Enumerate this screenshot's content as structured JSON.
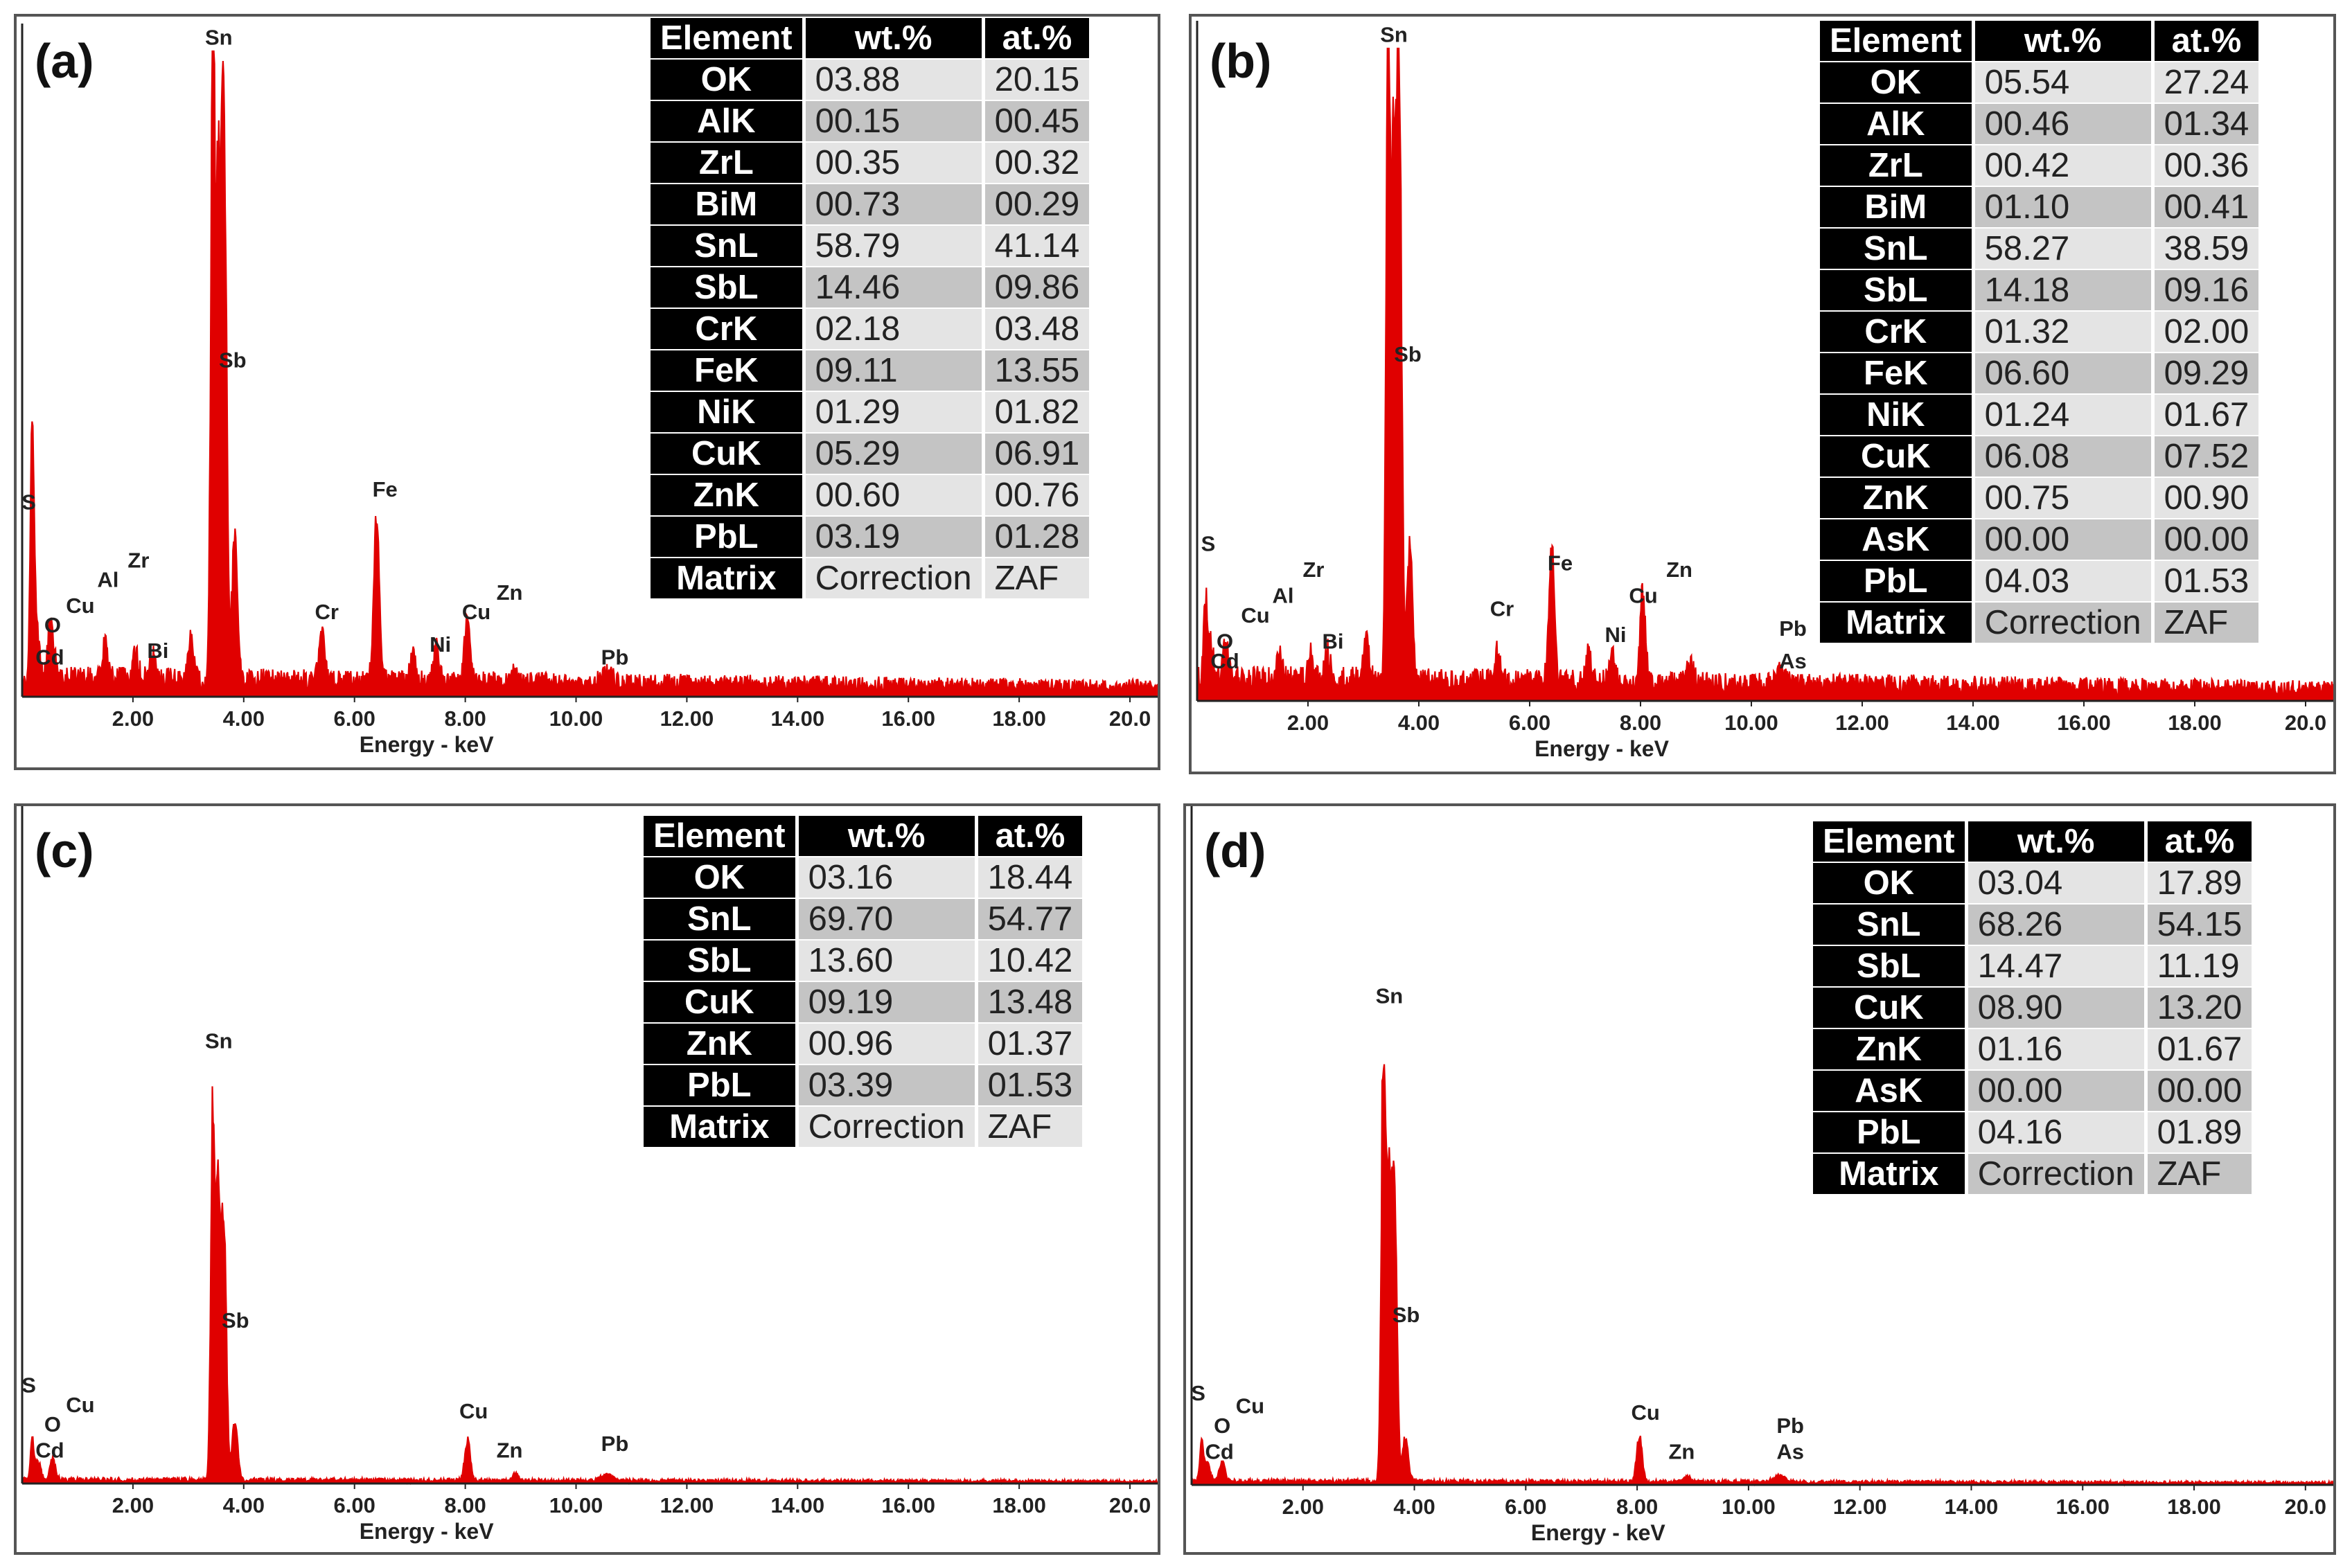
{
  "colors": {
    "spectrum": "#e00000",
    "axis": "#222222",
    "header_bg": "#000000"
  },
  "panels": [
    {
      "label": "(a)",
      "table": {
        "headers": [
          "Element",
          "wt.%",
          "at.%"
        ],
        "rows": [
          [
            "OK",
            "03.88",
            "20.15"
          ],
          [
            "AlK",
            "00.15",
            "00.45"
          ],
          [
            "ZrL",
            "00.35",
            "00.32"
          ],
          [
            "BiM",
            "00.73",
            "00.29"
          ],
          [
            "SnL",
            "58.79",
            "41.14"
          ],
          [
            "SbL",
            "14.46",
            "09.86"
          ],
          [
            "CrK",
            "02.18",
            "03.48"
          ],
          [
            "FeK",
            "09.11",
            "13.55"
          ],
          [
            "NiK",
            "01.29",
            "01.82"
          ],
          [
            "CuK",
            "05.29",
            "06.91"
          ],
          [
            "ZnK",
            "00.60",
            "00.76"
          ],
          [
            "PbL",
            "03.19",
            "01.28"
          ],
          [
            "Matrix",
            "Correction",
            "ZAF"
          ]
        ]
      }
    },
    {
      "label": "(b)",
      "table": {
        "headers": [
          "Element",
          "wt.%",
          "at.%"
        ],
        "rows": [
          [
            "OK",
            "05.54",
            "27.24"
          ],
          [
            "AlK",
            "00.46",
            "01.34"
          ],
          [
            "ZrL",
            "00.42",
            "00.36"
          ],
          [
            "BiM",
            "01.10",
            "00.41"
          ],
          [
            "SnL",
            "58.27",
            "38.59"
          ],
          [
            "SbL",
            "14.18",
            "09.16"
          ],
          [
            "CrK",
            "01.32",
            "02.00"
          ],
          [
            "FeK",
            "06.60",
            "09.29"
          ],
          [
            "NiK",
            "01.24",
            "01.67"
          ],
          [
            "CuK",
            "06.08",
            "07.52"
          ],
          [
            "ZnK",
            "00.75",
            "00.90"
          ],
          [
            "AsK",
            "00.00",
            "00.00"
          ],
          [
            "PbL",
            "04.03",
            "01.53"
          ],
          [
            "Matrix",
            "Correction",
            "ZAF"
          ]
        ]
      }
    },
    {
      "label": "(c)",
      "table": {
        "headers": [
          "Element",
          "wt.%",
          "at.%"
        ],
        "rows": [
          [
            "OK",
            "03.16",
            "18.44"
          ],
          [
            "SnL",
            "69.70",
            "54.77"
          ],
          [
            "SbL",
            "13.60",
            "10.42"
          ],
          [
            "CuK",
            "09.19",
            "13.48"
          ],
          [
            "ZnK",
            "00.96",
            "01.37"
          ],
          [
            "PbL",
            "03.39",
            "01.53"
          ],
          [
            "Matrix",
            "Correction",
            "ZAF"
          ]
        ]
      }
    },
    {
      "label": "(d)",
      "table": {
        "headers": [
          "Element",
          "wt.%",
          "at.%"
        ],
        "rows": [
          [
            "OK",
            "03.04",
            "17.89"
          ],
          [
            "SnL",
            "68.26",
            "54.15"
          ],
          [
            "SbL",
            "14.47",
            "11.19"
          ],
          [
            "CuK",
            "08.90",
            "13.20"
          ],
          [
            "ZnK",
            "01.16",
            "01.67"
          ],
          [
            "AsK",
            "00.00",
            "00.00"
          ],
          [
            "PbL",
            "04.16",
            "01.89"
          ],
          [
            "Matrix",
            "Correction",
            "ZAF"
          ]
        ]
      }
    }
  ],
  "chart_data": [
    {
      "type": "line",
      "title": "(a)",
      "xlabel": "Energy - keV",
      "ylabel": "",
      "xlim": [
        0,
        20.5
      ],
      "ylim": [
        0,
        1
      ],
      "xticks": [
        "2.00",
        "4.00",
        "6.00",
        "8.00",
        "10.00",
        "12.00",
        "14.00",
        "16.00",
        "18.00",
        "20.0"
      ],
      "baseline": 0.03,
      "peaks": [
        {
          "x": 0.18,
          "y": 0.39,
          "w": 0.03
        },
        {
          "x": 0.25,
          "y": 0.09,
          "w": 0.05
        },
        {
          "x": 0.52,
          "y": 0.1,
          "w": 0.05
        },
        {
          "x": 1.49,
          "y": 0.06,
          "w": 0.05
        },
        {
          "x": 2.05,
          "y": 0.04,
          "w": 0.05
        },
        {
          "x": 2.35,
          "y": 0.04,
          "w": 0.05
        },
        {
          "x": 3.05,
          "y": 0.06,
          "w": 0.05
        },
        {
          "x": 3.44,
          "y": 0.98,
          "w": 0.035
        },
        {
          "x": 3.53,
          "y": 0.72,
          "w": 0.04
        },
        {
          "x": 3.61,
          "y": 0.5,
          "w": 0.04
        },
        {
          "x": 3.66,
          "y": 0.58,
          "w": 0.04
        },
        {
          "x": 3.84,
          "y": 0.22,
          "w": 0.05
        },
        {
          "x": 5.41,
          "y": 0.08,
          "w": 0.05
        },
        {
          "x": 6.4,
          "y": 0.25,
          "w": 0.05
        },
        {
          "x": 7.06,
          "y": 0.04,
          "w": 0.05
        },
        {
          "x": 7.48,
          "y": 0.05,
          "w": 0.05
        },
        {
          "x": 8.04,
          "y": 0.1,
          "w": 0.05
        },
        {
          "x": 8.9,
          "y": 0.02,
          "w": 0.06
        },
        {
          "x": 10.55,
          "y": 0.015,
          "w": 0.1
        }
      ],
      "annotations": [
        {
          "text": "Sn",
          "x": 3.55,
          "y": 1.01
        },
        {
          "text": "Sb",
          "x": 3.8,
          "y": 0.51
        },
        {
          "text": "S",
          "x": 0.12,
          "y": 0.29
        },
        {
          "text": "Zr",
          "x": 2.1,
          "y": 0.2
        },
        {
          "text": "Al",
          "x": 1.55,
          "y": 0.17
        },
        {
          "text": "Cu",
          "x": 1.05,
          "y": 0.13
        },
        {
          "text": "O",
          "x": 0.55,
          "y": 0.1
        },
        {
          "text": "Cd",
          "x": 0.5,
          "y": 0.05
        },
        {
          "text": "Bi",
          "x": 2.45,
          "y": 0.06
        },
        {
          "text": "Fe",
          "x": 6.55,
          "y": 0.31
        },
        {
          "text": "Cr",
          "x": 5.5,
          "y": 0.12
        },
        {
          "text": "Zn",
          "x": 8.8,
          "y": 0.15
        },
        {
          "text": "Cu",
          "x": 8.2,
          "y": 0.12
        },
        {
          "text": "Ni",
          "x": 7.55,
          "y": 0.07
        },
        {
          "text": "Pb",
          "x": 10.7,
          "y": 0.05
        }
      ]
    },
    {
      "type": "line",
      "title": "(b)",
      "xlabel": "Energy - keV",
      "ylabel": "",
      "xlim": [
        0,
        20.5
      ],
      "ylim": [
        0,
        1
      ],
      "xticks": [
        "2.00",
        "4.00",
        "6.00",
        "8.00",
        "10.00",
        "12.00",
        "14.00",
        "16.00",
        "18.00",
        "20.0"
      ],
      "baseline": 0.035,
      "peaks": [
        {
          "x": 0.15,
          "y": 0.13,
          "w": 0.03
        },
        {
          "x": 0.25,
          "y": 0.05,
          "w": 0.05
        },
        {
          "x": 0.52,
          "y": 0.05,
          "w": 0.05
        },
        {
          "x": 1.49,
          "y": 0.05,
          "w": 0.05
        },
        {
          "x": 2.05,
          "y": 0.04,
          "w": 0.05
        },
        {
          "x": 2.35,
          "y": 0.04,
          "w": 0.05
        },
        {
          "x": 3.05,
          "y": 0.06,
          "w": 0.05
        },
        {
          "x": 3.44,
          "y": 0.98,
          "w": 0.035
        },
        {
          "x": 3.53,
          "y": 0.72,
          "w": 0.04
        },
        {
          "x": 3.61,
          "y": 0.56,
          "w": 0.04
        },
        {
          "x": 3.66,
          "y": 0.62,
          "w": 0.04
        },
        {
          "x": 3.84,
          "y": 0.22,
          "w": 0.05
        },
        {
          "x": 5.41,
          "y": 0.05,
          "w": 0.05
        },
        {
          "x": 6.4,
          "y": 0.2,
          "w": 0.05
        },
        {
          "x": 7.06,
          "y": 0.05,
          "w": 0.05
        },
        {
          "x": 7.48,
          "y": 0.05,
          "w": 0.05
        },
        {
          "x": 8.04,
          "y": 0.14,
          "w": 0.05
        },
        {
          "x": 8.9,
          "y": 0.03,
          "w": 0.06
        },
        {
          "x": 10.55,
          "y": 0.02,
          "w": 0.1
        }
      ],
      "annotations": [
        {
          "text": "Sn",
          "x": 3.55,
          "y": 1.01
        },
        {
          "text": "Sb",
          "x": 3.8,
          "y": 0.52
        },
        {
          "text": "S",
          "x": 0.2,
          "y": 0.23
        },
        {
          "text": "Zr",
          "x": 2.1,
          "y": 0.19
        },
        {
          "text": "Al",
          "x": 1.55,
          "y": 0.15
        },
        {
          "text": "Cu",
          "x": 1.05,
          "y": 0.12
        },
        {
          "text": "O",
          "x": 0.5,
          "y": 0.08
        },
        {
          "text": "Cd",
          "x": 0.5,
          "y": 0.05
        },
        {
          "text": "Bi",
          "x": 2.45,
          "y": 0.08
        },
        {
          "text": "Fe",
          "x": 6.55,
          "y": 0.2
        },
        {
          "text": "Cr",
          "x": 5.5,
          "y": 0.13
        },
        {
          "text": "Zn",
          "x": 8.7,
          "y": 0.19
        },
        {
          "text": "Cu",
          "x": 8.05,
          "y": 0.15
        },
        {
          "text": "Ni",
          "x": 7.55,
          "y": 0.09
        },
        {
          "text": "Pb",
          "x": 10.75,
          "y": 0.1
        },
        {
          "text": "As",
          "x": 10.75,
          "y": 0.05
        }
      ]
    },
    {
      "type": "line",
      "title": "(c)",
      "xlabel": "Energy - keV",
      "ylabel": "",
      "xlim": [
        0,
        20.5
      ],
      "ylim": [
        0,
        1
      ],
      "xticks": [
        "2.00",
        "4.00",
        "6.00",
        "8.00",
        "10.00",
        "12.00",
        "14.00",
        "16.00",
        "18.00",
        "20.0"
      ],
      "baseline": 0.006,
      "peaks": [
        {
          "x": 0.18,
          "y": 0.06,
          "w": 0.03
        },
        {
          "x": 0.28,
          "y": 0.03,
          "w": 0.05
        },
        {
          "x": 0.55,
          "y": 0.03,
          "w": 0.05
        },
        {
          "x": 3.44,
          "y": 0.55,
          "w": 0.035
        },
        {
          "x": 3.53,
          "y": 0.42,
          "w": 0.04
        },
        {
          "x": 3.61,
          "y": 0.24,
          "w": 0.04
        },
        {
          "x": 3.66,
          "y": 0.25,
          "w": 0.04
        },
        {
          "x": 3.84,
          "y": 0.09,
          "w": 0.05
        },
        {
          "x": 8.04,
          "y": 0.06,
          "w": 0.05
        },
        {
          "x": 8.9,
          "y": 0.01,
          "w": 0.06
        },
        {
          "x": 10.55,
          "y": 0.01,
          "w": 0.1
        }
      ],
      "annotations": [
        {
          "text": "Sn",
          "x": 3.55,
          "y": 0.67
        },
        {
          "text": "Sb",
          "x": 3.85,
          "y": 0.24
        },
        {
          "text": "S",
          "x": 0.12,
          "y": 0.14
        },
        {
          "text": "Cu",
          "x": 1.05,
          "y": 0.11
        },
        {
          "text": "O",
          "x": 0.55,
          "y": 0.08
        },
        {
          "text": "Cd",
          "x": 0.5,
          "y": 0.04
        },
        {
          "text": "Cu",
          "x": 8.15,
          "y": 0.1
        },
        {
          "text": "Zn",
          "x": 8.8,
          "y": 0.04
        },
        {
          "text": "Pb",
          "x": 10.7,
          "y": 0.05
        }
      ]
    },
    {
      "type": "line",
      "title": "(d)",
      "xlabel": "Energy - keV",
      "ylabel": "",
      "xlim": [
        0,
        20.5
      ],
      "ylim": [
        0,
        1
      ],
      "xticks": [
        "2.00",
        "4.00",
        "6.00",
        "8.00",
        "10.00",
        "12.00",
        "14.00",
        "16.00",
        "18.00",
        "20.0"
      ],
      "baseline": 0.006,
      "peaks": [
        {
          "x": 0.18,
          "y": 0.06,
          "w": 0.03
        },
        {
          "x": 0.28,
          "y": 0.03,
          "w": 0.05
        },
        {
          "x": 0.55,
          "y": 0.03,
          "w": 0.05
        },
        {
          "x": 3.44,
          "y": 0.64,
          "w": 0.035
        },
        {
          "x": 3.53,
          "y": 0.45,
          "w": 0.04
        },
        {
          "x": 3.61,
          "y": 0.28,
          "w": 0.04
        },
        {
          "x": 3.66,
          "y": 0.3,
          "w": 0.04
        },
        {
          "x": 3.84,
          "y": 0.07,
          "w": 0.05
        },
        {
          "x": 8.04,
          "y": 0.07,
          "w": 0.05
        },
        {
          "x": 8.9,
          "y": 0.01,
          "w": 0.06
        },
        {
          "x": 10.55,
          "y": 0.01,
          "w": 0.1
        }
      ],
      "annotations": [
        {
          "text": "Sn",
          "x": 3.55,
          "y": 0.74
        },
        {
          "text": "Sb",
          "x": 3.85,
          "y": 0.25
        },
        {
          "text": "S",
          "x": 0.12,
          "y": 0.13
        },
        {
          "text": "Cu",
          "x": 1.05,
          "y": 0.11
        },
        {
          "text": "O",
          "x": 0.55,
          "y": 0.08
        },
        {
          "text": "Cd",
          "x": 0.5,
          "y": 0.04
        },
        {
          "text": "Cu",
          "x": 8.15,
          "y": 0.1
        },
        {
          "text": "Zn",
          "x": 8.8,
          "y": 0.04
        },
        {
          "text": "Pb",
          "x": 10.75,
          "y": 0.08
        },
        {
          "text": "As",
          "x": 10.75,
          "y": 0.04
        }
      ]
    }
  ]
}
